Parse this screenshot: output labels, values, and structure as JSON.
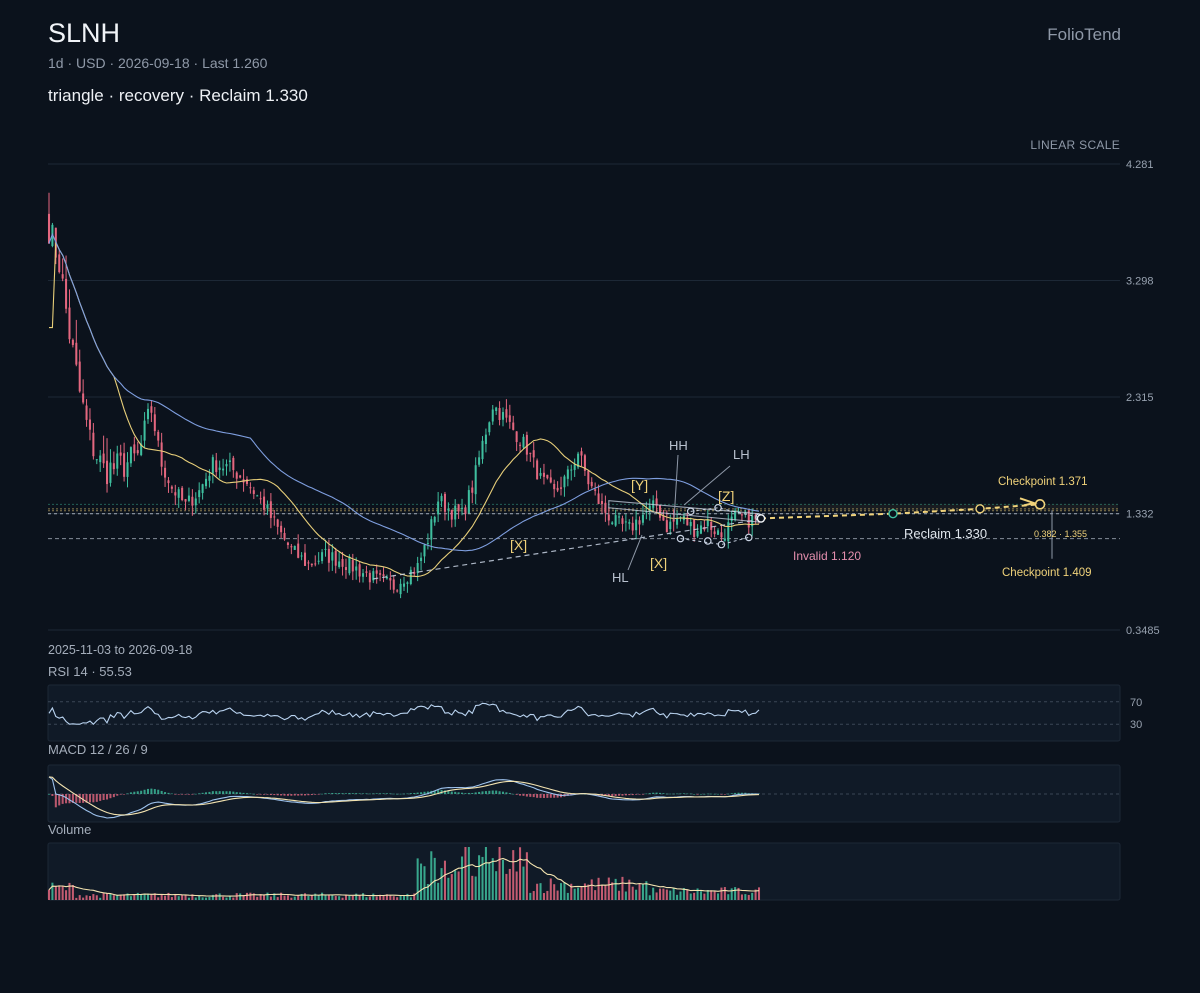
{
  "header": {
    "ticker": "SLNH",
    "meta": "1d · USD · 2026-09-18 · Last 1.260",
    "headline": "triangle · recovery · Reclaim 1.330",
    "brand": "FolioTend",
    "scale": "LINEAR SCALE",
    "date_range": "2025-11-03 to 2026-09-18"
  },
  "panels": {
    "rsi": "RSI 14 · 55.53",
    "macd": "MACD 12 / 26 / 9",
    "volume": "Volume"
  },
  "colors": {
    "up": "#3fbf9f",
    "down": "#e4677f",
    "ma_fast": "#e8cf7a",
    "ma_slow": "#7f9fe0",
    "accent": "#f0d27a",
    "grid": "#1d2836",
    "pattern": "#c9d3e3",
    "invalid": "#e58fae"
  },
  "chart_data": {
    "type": "candlestick",
    "title": "SLNH",
    "y_axis": {
      "ticks": [
        "4.281",
        "3.298",
        "2.315",
        "1.332",
        "0.3485"
      ],
      "scale": "linear",
      "ylim": [
        0.3485,
        4.281
      ]
    },
    "x_range": [
      "2025-11-03",
      "2026-09-18"
    ],
    "last": 1.26,
    "levels": {
      "reclaim": {
        "label": "Reclaim 1.330",
        "value": 1.33
      },
      "invalid": {
        "label": "Invalid 1.120",
        "value": 1.12
      },
      "checkpoint_1": {
        "label": "Checkpoint 1.371",
        "value": 1.371
      },
      "checkpoint_2": {
        "label": "Checkpoint 1.409",
        "value": 1.409
      },
      "fib": {
        "label": "0.382 · 1.355",
        "value": 1.355
      }
    },
    "pattern_labels": {
      "hh": "HH",
      "lh": "LH",
      "hl": "HL",
      "x1": "[X]",
      "x2": "[X]",
      "y": "[Y]",
      "z": "[Z]"
    },
    "rsi": {
      "period": 14,
      "last": 55.53,
      "levels": [
        "70",
        "30"
      ]
    },
    "macd": {
      "fast": 12,
      "slow": 26,
      "signal": 9
    },
    "anchors": [
      [
        0,
        3.75
      ],
      [
        3,
        3.45
      ],
      [
        6,
        2.85
      ],
      [
        9,
        2.35
      ],
      [
        12,
        1.95
      ],
      [
        16,
        1.7
      ],
      [
        20,
        1.72
      ],
      [
        26,
        1.8
      ],
      [
        30,
        2.2
      ],
      [
        33,
        1.75
      ],
      [
        36,
        1.55
      ],
      [
        40,
        1.4
      ],
      [
        44,
        1.52
      ],
      [
        48,
        1.75
      ],
      [
        53,
        1.72
      ],
      [
        58,
        1.6
      ],
      [
        63,
        1.4
      ],
      [
        67,
        1.2
      ],
      [
        71,
        1.02
      ],
      [
        76,
        0.9
      ],
      [
        81,
        0.98
      ],
      [
        86,
        0.93
      ],
      [
        91,
        0.85
      ],
      [
        96,
        0.77
      ],
      [
        101,
        0.72
      ],
      [
        104,
        0.8
      ],
      [
        108,
        0.88
      ],
      [
        111,
        1.12
      ],
      [
        114,
        1.45
      ],
      [
        118,
        1.35
      ],
      [
        121,
        1.32
      ],
      [
        124,
        1.55
      ],
      [
        127,
        1.92
      ],
      [
        130,
        2.25
      ],
      [
        133,
        2.15
      ],
      [
        137,
        2.0
      ],
      [
        140,
        1.88
      ],
      [
        144,
        1.62
      ],
      [
        148,
        1.5
      ],
      [
        152,
        1.65
      ],
      [
        155,
        1.85
      ],
      [
        158,
        1.6
      ],
      [
        162,
        1.38
      ],
      [
        166,
        1.25
      ],
      [
        170,
        1.2
      ],
      [
        174,
        1.32
      ],
      [
        178,
        1.4
      ],
      [
        181,
        1.22
      ],
      [
        185,
        1.3
      ],
      [
        189,
        1.2
      ],
      [
        193,
        1.25
      ],
      [
        197,
        1.14
      ],
      [
        201,
        1.3
      ],
      [
        205,
        1.28
      ],
      [
        208,
        1.26
      ]
    ],
    "count": 209
  }
}
